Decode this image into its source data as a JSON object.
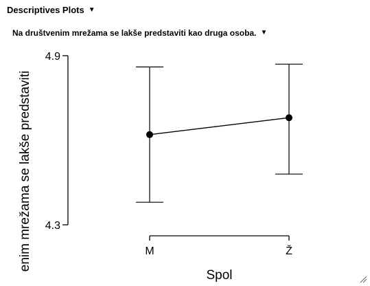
{
  "section": {
    "title": "Descriptives Plots",
    "toggle_icon": "triangle-down-icon"
  },
  "plot": {
    "title": "Na društvenim mrežama se lakše predstaviti kao druga osoba.",
    "toggle_icon": "triangle-down-icon"
  },
  "chart_data": {
    "type": "line",
    "categories": [
      "M",
      "Ž"
    ],
    "series": [
      {
        "means": [
          4.62,
          4.68
        ],
        "ci_low": [
          4.38,
          4.48
        ],
        "ci_high": [
          4.86,
          4.87
        ]
      }
    ],
    "xlabel": "Spol",
    "ylabel": "enim mrežama se lakše predstaviti",
    "yticks": [
      4.3,
      4.9
    ],
    "ylim": [
      4.3,
      4.9
    ],
    "grid": false,
    "legend": "none"
  }
}
